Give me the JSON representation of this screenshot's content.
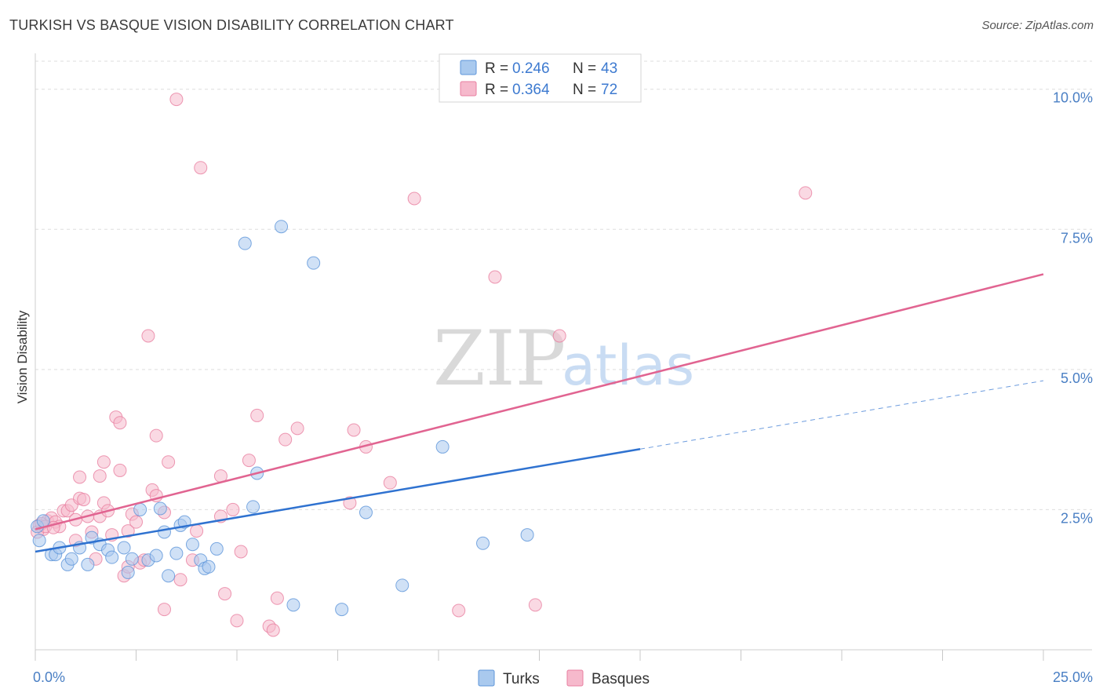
{
  "title": "TURKISH VS BASQUE VISION DISABILITY CORRELATION CHART",
  "source": "Source: ZipAtlas.com",
  "watermark": {
    "zip": "ZIP",
    "atlas": "atlas"
  },
  "colors": {
    "turks_fill": "#a9c9ee",
    "turks_stroke": "#5d95d9",
    "turks_line": "#2f72d0",
    "basques_fill": "#f6b9cc",
    "basques_stroke": "#e87fa0",
    "basques_line": "#e16491",
    "grid": "#dedede",
    "tick_text": "#4a7fc4"
  },
  "legend": {
    "rows": [
      {
        "series": "Turks",
        "r_label": "R =",
        "r_value": "0.246",
        "n_label": "N =",
        "n_value": "43"
      },
      {
        "series": "Basques",
        "r_label": "R =",
        "r_value": "0.364",
        "n_label": "N =",
        "n_value": "72"
      }
    ]
  },
  "bottom_legend": [
    "Turks",
    "Basques"
  ],
  "chart_data": {
    "type": "scatter",
    "title": "TURKISH VS BASQUE VISION DISABILITY CORRELATION CHART",
    "xlabel": "",
    "ylabel": "Vision Disability",
    "xlim": [
      0,
      25
    ],
    "ylim": [
      0,
      10.5
    ],
    "x_tick_labels": [
      "0.0%",
      "25.0%"
    ],
    "y_ticks": [
      2.5,
      5.0,
      7.5,
      10.0
    ],
    "y_tick_labels": [
      "2.5%",
      "5.0%",
      "7.5%",
      "10.0%"
    ],
    "grid": true,
    "series": [
      {
        "name": "Turks",
        "r": 0.246,
        "n": 43,
        "trend": {
          "x0": 0,
          "y0": 1.75,
          "x1": 15,
          "y1": 3.58,
          "dashed_to_x": 25,
          "dashed_to_y": 4.8
        },
        "points": [
          [
            0.1,
            1.95
          ],
          [
            0.4,
            1.7
          ],
          [
            0.5,
            1.7
          ],
          [
            0.6,
            1.82
          ],
          [
            0.8,
            1.52
          ],
          [
            0.9,
            1.62
          ],
          [
            1.1,
            1.82
          ],
          [
            1.3,
            1.52
          ],
          [
            1.4,
            2.0
          ],
          [
            1.6,
            1.88
          ],
          [
            1.8,
            1.78
          ],
          [
            1.9,
            1.65
          ],
          [
            2.2,
            1.82
          ],
          [
            2.3,
            1.38
          ],
          [
            2.4,
            1.62
          ],
          [
            2.6,
            2.5
          ],
          [
            2.8,
            1.6
          ],
          [
            3.0,
            1.68
          ],
          [
            3.1,
            2.52
          ],
          [
            3.2,
            2.1
          ],
          [
            3.3,
            1.32
          ],
          [
            3.5,
            1.72
          ],
          [
            3.6,
            2.22
          ],
          [
            3.7,
            2.28
          ],
          [
            3.9,
            1.88
          ],
          [
            4.1,
            1.6
          ],
          [
            4.2,
            1.45
          ],
          [
            4.3,
            1.48
          ],
          [
            4.5,
            1.8
          ],
          [
            5.2,
            7.25
          ],
          [
            5.4,
            2.55
          ],
          [
            5.5,
            3.15
          ],
          [
            6.1,
            7.55
          ],
          [
            6.4,
            0.8
          ],
          [
            6.9,
            6.9
          ],
          [
            7.6,
            0.72
          ],
          [
            8.2,
            2.45
          ],
          [
            9.1,
            1.15
          ],
          [
            10.1,
            3.62
          ],
          [
            11.1,
            1.9
          ],
          [
            12.2,
            2.05
          ],
          [
            0.05,
            2.2
          ],
          [
            0.2,
            2.3
          ]
        ]
      },
      {
        "name": "Basques",
        "r": 0.364,
        "n": 72,
        "trend": {
          "x0": 0,
          "y0": 2.15,
          "x1": 25,
          "y1": 6.7
        },
        "points": [
          [
            0.1,
            2.22
          ],
          [
            0.2,
            2.15
          ],
          [
            0.3,
            2.3
          ],
          [
            0.4,
            2.35
          ],
          [
            0.5,
            2.28
          ],
          [
            0.6,
            2.2
          ],
          [
            0.7,
            2.48
          ],
          [
            0.8,
            2.48
          ],
          [
            0.9,
            2.58
          ],
          [
            1.0,
            2.32
          ],
          [
            1.0,
            1.95
          ],
          [
            1.1,
            3.08
          ],
          [
            1.1,
            2.7
          ],
          [
            1.2,
            2.68
          ],
          [
            1.3,
            2.38
          ],
          [
            1.4,
            2.1
          ],
          [
            1.5,
            1.62
          ],
          [
            1.6,
            2.38
          ],
          [
            1.6,
            3.1
          ],
          [
            1.7,
            2.62
          ],
          [
            1.7,
            3.35
          ],
          [
            1.8,
            2.48
          ],
          [
            1.9,
            2.05
          ],
          [
            2.0,
            4.15
          ],
          [
            2.1,
            4.05
          ],
          [
            2.1,
            3.2
          ],
          [
            2.2,
            1.32
          ],
          [
            2.3,
            1.48
          ],
          [
            2.3,
            2.12
          ],
          [
            2.4,
            2.42
          ],
          [
            2.5,
            2.28
          ],
          [
            2.6,
            1.55
          ],
          [
            2.7,
            1.6
          ],
          [
            2.8,
            5.6
          ],
          [
            2.9,
            2.85
          ],
          [
            3.0,
            2.75
          ],
          [
            3.0,
            3.82
          ],
          [
            3.2,
            2.45
          ],
          [
            3.2,
            0.72
          ],
          [
            3.3,
            3.35
          ],
          [
            3.5,
            9.82
          ],
          [
            3.6,
            1.25
          ],
          [
            3.9,
            1.6
          ],
          [
            4.0,
            2.12
          ],
          [
            4.1,
            8.6
          ],
          [
            4.6,
            3.1
          ],
          [
            4.6,
            2.38
          ],
          [
            4.7,
            1.0
          ],
          [
            4.9,
            2.5
          ],
          [
            5.0,
            0.52
          ],
          [
            5.1,
            1.75
          ],
          [
            5.3,
            3.38
          ],
          [
            5.5,
            4.18
          ],
          [
            5.8,
            0.42
          ],
          [
            5.9,
            0.35
          ],
          [
            6.0,
            0.92
          ],
          [
            6.2,
            3.75
          ],
          [
            6.5,
            3.95
          ],
          [
            7.8,
            2.62
          ],
          [
            7.9,
            3.92
          ],
          [
            8.2,
            3.62
          ],
          [
            8.8,
            2.98
          ],
          [
            9.4,
            8.05
          ],
          [
            10.5,
            0.7
          ],
          [
            11.4,
            6.65
          ],
          [
            12.4,
            0.8
          ],
          [
            13.0,
            5.6
          ],
          [
            19.1,
            8.15
          ],
          [
            0.05,
            2.1
          ],
          [
            0.15,
            2.25
          ],
          [
            0.25,
            2.2
          ],
          [
            0.45,
            2.18
          ]
        ]
      }
    ]
  }
}
